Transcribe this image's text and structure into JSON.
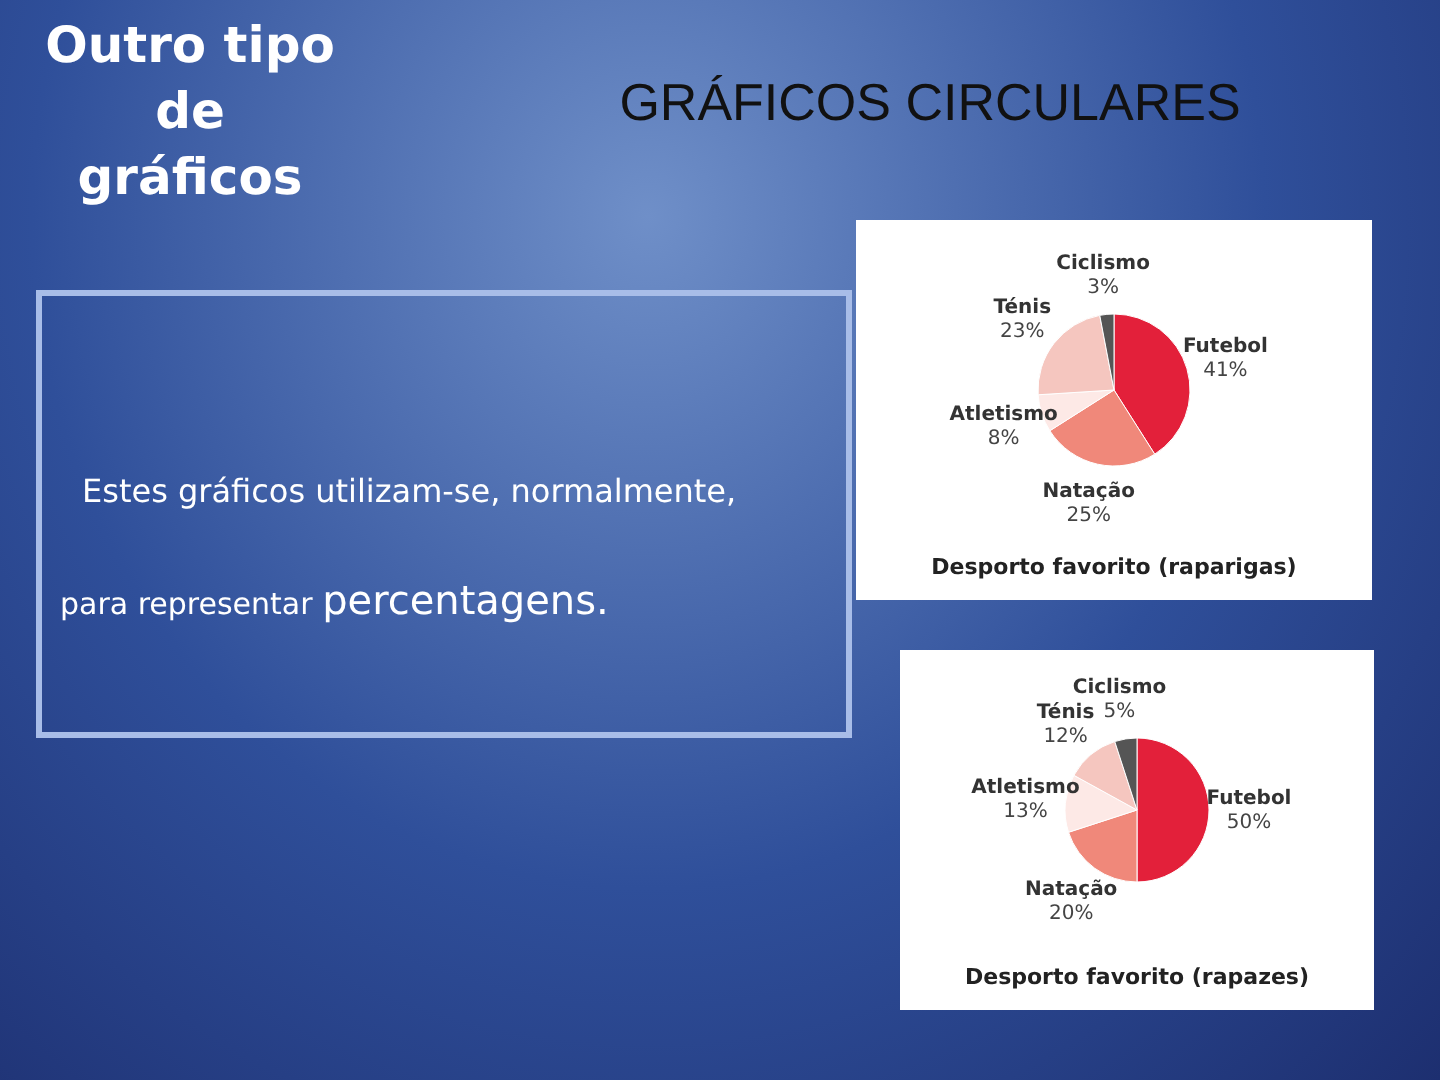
{
  "chart_data": [
    {
      "type": "other",
      "title": "GRÁFICOS CIRCULARES",
      "subtitle": "Outro tipo de gráficos",
      "annotations": [
        "Estes gráficos utilizam-se, normalmente,",
        "para representar",
        "percentagens."
      ]
    },
    {
      "type": "pie",
      "title": "Desporto favorito (raparigas)",
      "categories": [
        "Futebol",
        "Natação",
        "Atletismo",
        "Ténis",
        "Ciclismo"
      ],
      "values": [
        41,
        25,
        8,
        23,
        3
      ],
      "value_labels": [
        "41%",
        "25%",
        "8%",
        "23%",
        "3%"
      ],
      "colors": [
        "#e3203a",
        "#f0887a",
        "#fde9e6",
        "#f5c6bf",
        "#555555"
      ],
      "legend": false
    },
    {
      "type": "pie",
      "title": "Desporto favorito (rapazes)",
      "categories": [
        "Futebol",
        "Natação",
        "Atletismo",
        "Ténis",
        "Ciclismo"
      ],
      "values": [
        50,
        20,
        13,
        12,
        5
      ],
      "value_labels": [
        "50%",
        "20%",
        "13%",
        "12%",
        "5%"
      ],
      "colors": [
        "#e3203a",
        "#f0887a",
        "#fde9e6",
        "#f5c6bf",
        "#555555"
      ],
      "legend": false
    }
  ]
}
